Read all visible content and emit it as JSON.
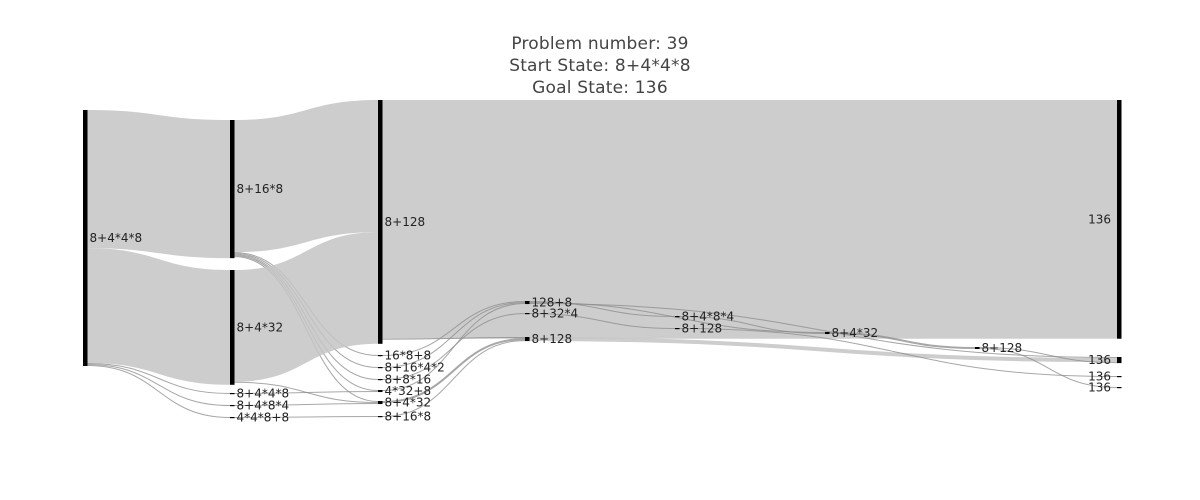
{
  "title": {
    "line1": "Problem number: 39",
    "line2": "Start State: 8+4*4*8",
    "line3": "Goal State: 136"
  },
  "colors": {
    "link": "#c4c4c4",
    "node": "#000000",
    "background": "#ffffff"
  },
  "chart_data": {
    "type": "sankey",
    "nodes": [
      {
        "id": "n0",
        "label": "8+4*4*8"
      },
      {
        "id": "n1",
        "label": "8+16*8"
      },
      {
        "id": "n2",
        "label": "8+4*32"
      },
      {
        "id": "n3",
        "label": "8+4*4*8"
      },
      {
        "id": "n4",
        "label": "8+4*8*4"
      },
      {
        "id": "n5",
        "label": "4*4*8+8"
      },
      {
        "id": "n6",
        "label": "8+128"
      },
      {
        "id": "n7",
        "label": "16*8+8"
      },
      {
        "id": "n8",
        "label": "8+16*4*2"
      },
      {
        "id": "n9",
        "label": "8+8*16"
      },
      {
        "id": "n10",
        "label": "4*32+8"
      },
      {
        "id": "n11",
        "label": "8+4*32"
      },
      {
        "id": "n12",
        "label": "8+16*8"
      },
      {
        "id": "n13",
        "label": "128+8"
      },
      {
        "id": "n14",
        "label": "8+32*4"
      },
      {
        "id": "n15",
        "label": "8+128"
      },
      {
        "id": "n16",
        "label": "8+4*8*4"
      },
      {
        "id": "n17",
        "label": "8+128"
      },
      {
        "id": "n18",
        "label": "8+4*32"
      },
      {
        "id": "n19",
        "label": "8+128"
      },
      {
        "id": "n20",
        "label": "136"
      },
      {
        "id": "n21",
        "label": "136"
      },
      {
        "id": "n22",
        "label": "136"
      },
      {
        "id": "n23",
        "label": "136"
      }
    ],
    "links": [
      {
        "source": "n0",
        "target": "n1",
        "value": 136
      },
      {
        "source": "n0",
        "target": "n2",
        "value": 113
      },
      {
        "source": "n0",
        "target": "n3",
        "value": 1
      },
      {
        "source": "n0",
        "target": "n4",
        "value": 1
      },
      {
        "source": "n0",
        "target": "n5",
        "value": 1
      },
      {
        "source": "n1",
        "target": "n6",
        "value": 130
      },
      {
        "source": "n1",
        "target": "n7",
        "value": 1
      },
      {
        "source": "n1",
        "target": "n8",
        "value": 1
      },
      {
        "source": "n1",
        "target": "n9",
        "value": 1
      },
      {
        "source": "n1",
        "target": "n10",
        "value": 1
      },
      {
        "source": "n1",
        "target": "n11",
        "value": 1
      },
      {
        "source": "n2",
        "target": "n6",
        "value": 110
      },
      {
        "source": "n2",
        "target": "n11",
        "value": 1
      },
      {
        "source": "n3",
        "target": "n10",
        "value": 1
      },
      {
        "source": "n4",
        "target": "n11",
        "value": 1
      },
      {
        "source": "n5",
        "target": "n12",
        "value": 1
      },
      {
        "source": "n6",
        "target": "n20",
        "value": 235
      },
      {
        "source": "n6",
        "target": "n15",
        "value": 1
      },
      {
        "source": "n7",
        "target": "n13",
        "value": 1
      },
      {
        "source": "n8",
        "target": "n13",
        "value": 1
      },
      {
        "source": "n9",
        "target": "n14",
        "value": 1
      },
      {
        "source": "n10",
        "target": "n13",
        "value": 1
      },
      {
        "source": "n11",
        "target": "n15",
        "value": 2
      },
      {
        "source": "n12",
        "target": "n15",
        "value": 1
      },
      {
        "source": "n13",
        "target": "n16",
        "value": 1
      },
      {
        "source": "n13",
        "target": "n18",
        "value": 1
      },
      {
        "source": "n13",
        "target": "n21",
        "value": 1
      },
      {
        "source": "n14",
        "target": "n17",
        "value": 1
      },
      {
        "source": "n15",
        "target": "n21",
        "value": 4
      },
      {
        "source": "n16",
        "target": "n18",
        "value": 1
      },
      {
        "source": "n17",
        "target": "n22",
        "value": 1
      },
      {
        "source": "n18",
        "target": "n19",
        "value": 2
      },
      {
        "source": "n19",
        "target": "n21",
        "value": 1
      },
      {
        "source": "n19",
        "target": "n23",
        "value": 1
      }
    ]
  }
}
